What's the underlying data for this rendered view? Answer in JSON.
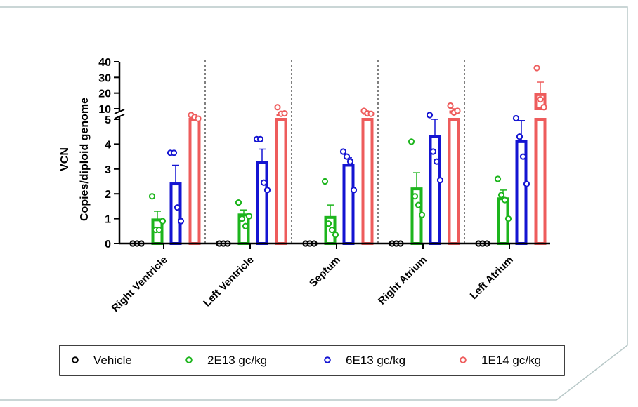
{
  "chart_data": {
    "type": "bar",
    "title": "",
    "xlabel": "",
    "ylabel_lines": [
      "VCN",
      "Copies/diploid genome"
    ],
    "y_axis_break": true,
    "ylim_lower": [
      0,
      5
    ],
    "ylim_upper": [
      10,
      40
    ],
    "yticks_lower": [
      "0",
      "1",
      "2",
      "3",
      "4",
      "5"
    ],
    "yticks_upper": [
      "10",
      "20",
      "30",
      "40"
    ],
    "categories": [
      "Right Ventricle",
      "Left Ventricle",
      "Septum",
      "Right Atrium",
      "Left Atrium"
    ],
    "series": [
      {
        "name": "Vehicle",
        "color": "#000000",
        "means": [
          0,
          0,
          0,
          0,
          0
        ],
        "sem": [
          0,
          0,
          0,
          0,
          0
        ],
        "points": [
          [
            0,
            0,
            0
          ],
          [
            0,
            0,
            0
          ],
          [
            0,
            0,
            0
          ],
          [
            0,
            0,
            0
          ],
          [
            0,
            0,
            0
          ]
        ]
      },
      {
        "name": "2E13 gc/kg",
        "color": "#1DB51D",
        "means": [
          0.95,
          1.15,
          1.05,
          2.2,
          1.8
        ],
        "sem": [
          0.35,
          0.2,
          0.5,
          0.65,
          0.35
        ],
        "points": [
          [
            1.9,
            0.55,
            0.55,
            0.9
          ],
          [
            1.65,
            1.0,
            0.7,
            1.1
          ],
          [
            2.5,
            0.8,
            0.55,
            0.35
          ],
          [
            4.1,
            1.9,
            1.55,
            1.15
          ],
          [
            2.6,
            1.95,
            1.75,
            1.0
          ]
        ]
      },
      {
        "name": "6E13 gc/kg",
        "color": "#1414D2",
        "means": [
          2.4,
          3.25,
          3.15,
          4.3,
          4.1
        ],
        "sem": [
          0.75,
          0.55,
          0.3,
          0.7,
          0.85
        ],
        "points": [
          [
            3.65,
            3.65,
            1.45,
            0.9
          ],
          [
            4.2,
            4.2,
            2.45,
            2.15
          ],
          [
            3.7,
            3.5,
            3.3,
            2.15
          ],
          [
            7.0,
            3.7,
            3.3,
            2.55
          ],
          [
            5.5,
            4.3,
            3.5,
            2.4
          ]
        ]
      },
      {
        "name": "1E14 gc/kg",
        "color": "#EE5C5C",
        "means": [
          5.5,
          7.0,
          7.8,
          8.5,
          19.0
        ],
        "sem": [
          0.8,
          0.8,
          0.6,
          1.5,
          8.0
        ],
        "points": [
          [
            7.0,
            6.1,
            5.3
          ],
          [
            11.0,
            7.6,
            7.8
          ],
          [
            9.0,
            7.8,
            7.6
          ],
          [
            12.0,
            8.2,
            9.0
          ],
          [
            36.0,
            16.0,
            11.0
          ]
        ]
      }
    ],
    "legend_position": "bottom",
    "dividers": "dashed vertical lines between groups"
  }
}
